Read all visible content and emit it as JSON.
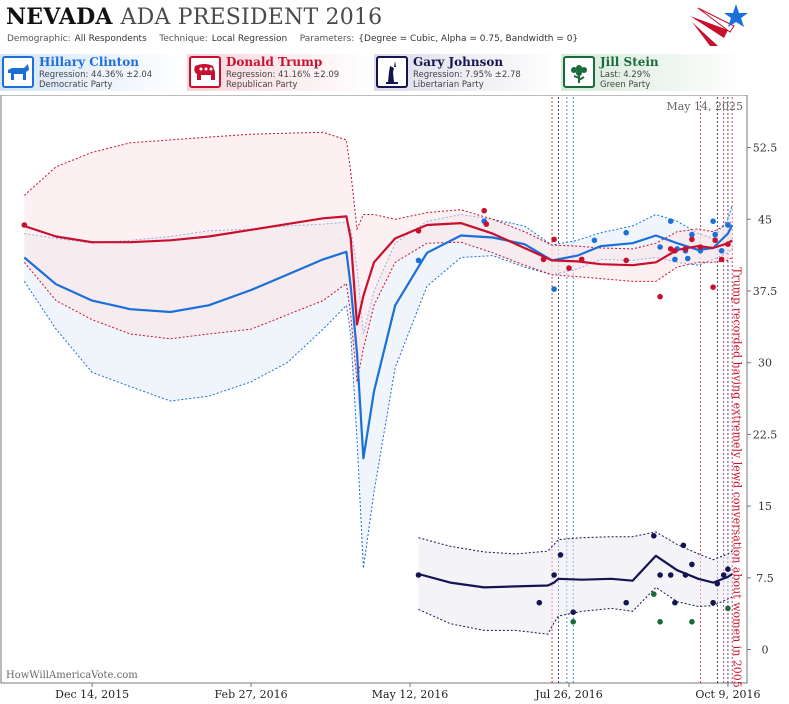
{
  "header": {
    "state": "NEVADA",
    "race": "ADA PRESIDENT 2016",
    "demographic_label": "Demographic:",
    "demographic": "All Respondents",
    "technique_label": "Technique:",
    "technique": "Local Regression",
    "parameters_label": "Parameters:",
    "parameters": "{Degree = Cubic, Alpha = 0.75, Bandwidth = 0}"
  },
  "candidates": [
    {
      "name": "Hillary Clinton",
      "line2": "Regression: 44.36% ±2.04",
      "line3": "Democratic Party",
      "color": "#1a6fd8",
      "icon": "donkey-icon"
    },
    {
      "name": "Donald Trump",
      "line2": "Regression: 41.16% ±2.09",
      "line3": "Republican Party",
      "color": "#c8102e",
      "icon": "elephant-icon"
    },
    {
      "name": "Gary Johnson",
      "line2": "Regression: 7.95% ±2.78",
      "line3": "Libertarian Party",
      "color": "#141450",
      "icon": "statue-of-liberty-icon"
    },
    {
      "name": "Jill Stein",
      "line2": "Last: 4.29%",
      "line3": "Green Party",
      "color": "#1a6b3c",
      "icon": "flower-icon"
    }
  ],
  "chart_data": {
    "type": "line",
    "x_unit": "date",
    "xlim": [
      "2015-11-01",
      "2016-10-18"
    ],
    "ylim": [
      -3.5,
      58
    ],
    "y_ticks": [
      0,
      7.5,
      15,
      22.5,
      30,
      37.5,
      45,
      52.5
    ],
    "y_tick_labels": [
      "0",
      "7.5",
      "15",
      "22.5",
      "30",
      "37.5",
      "45",
      "52.5"
    ],
    "x_ticks": [
      "2015-12-14",
      "2016-02-27",
      "2016-05-12",
      "2016-07-26",
      "2016-10-09"
    ],
    "x_tick_labels": [
      "Dec 14, 2015",
      "Feb 27, 2016",
      "May 12, 2016",
      "Jul 26, 2016",
      "Oct 9, 2016"
    ],
    "date_stamp": "May 14, 2025",
    "watermark": "HowWillAmericaVote.com",
    "annotation": "Trump recorded having extremely lewd conversation about women in 2005",
    "annotation_date": "2016-10-07",
    "event_lines": [
      "2016-07-18",
      "2016-07-21",
      "2016-07-25",
      "2016-07-28",
      "2016-09-26",
      "2016-10-04",
      "2016-10-07",
      "2016-10-09",
      "2016-10-11"
    ],
    "series": [
      {
        "name": "Hillary Clinton",
        "color": "#1a6fd8",
        "x": [
          "2015-11-12",
          "2015-11-27",
          "2015-12-14",
          "2016-01-01",
          "2016-01-20",
          "2016-02-07",
          "2016-02-27",
          "2016-03-15",
          "2016-04-01",
          "2016-04-12",
          "2016-04-14",
          "2016-04-17",
          "2016-04-20",
          "2016-04-25",
          "2016-05-05",
          "2016-05-20",
          "2016-06-05",
          "2016-06-20",
          "2016-07-05",
          "2016-07-18",
          "2016-07-30",
          "2016-08-10",
          "2016-08-25",
          "2016-09-05",
          "2016-09-15",
          "2016-09-25",
          "2016-10-02",
          "2016-10-09",
          "2016-10-11"
        ],
        "values": [
          41.0,
          38.2,
          36.5,
          35.6,
          35.3,
          36.0,
          37.6,
          39.2,
          40.8,
          41.6,
          38.0,
          31.0,
          20.0,
          27.0,
          36.0,
          41.5,
          43.3,
          43.1,
          42.4,
          40.7,
          41.2,
          42.2,
          42.5,
          43.3,
          42.5,
          41.8,
          42.0,
          43.5,
          44.4
        ],
        "upper": [
          43.5,
          43.0,
          42.5,
          42.8,
          43.2,
          43.8,
          44.0,
          44.3,
          44.5,
          44.7,
          44.0,
          40.0,
          33.0,
          37.5,
          42.5,
          44.8,
          45.5,
          45.0,
          44.3,
          42.3,
          42.8,
          43.6,
          44.3,
          45.5,
          44.8,
          43.5,
          43.0,
          45.0,
          46.5
        ],
        "lower": [
          38.5,
          33.5,
          29.0,
          27.5,
          26.0,
          26.5,
          28.0,
          30.0,
          33.5,
          36.0,
          33.0,
          22.0,
          8.5,
          16.5,
          29.5,
          38.0,
          41.0,
          41.2,
          40.0,
          39.2,
          39.8,
          40.8,
          40.7,
          41.0,
          40.5,
          40.2,
          40.8,
          41.5,
          42.0
        ],
        "points_x": [
          "2016-05-16",
          "2016-06-16",
          "2016-07-19",
          "2016-08-07",
          "2016-08-22",
          "2016-09-07",
          "2016-09-12",
          "2016-09-14",
          "2016-09-15",
          "2016-09-19",
          "2016-09-20",
          "2016-09-22",
          "2016-09-26",
          "2016-10-02",
          "2016-10-03",
          "2016-10-06",
          "2016-10-09"
        ],
        "points_y": [
          40.7,
          44.8,
          37.7,
          42.8,
          43.6,
          42.1,
          44.8,
          40.8,
          41.9,
          41.7,
          40.9,
          43.4,
          41.7,
          44.8,
          43.4,
          41.7,
          44.4
        ]
      },
      {
        "name": "Donald Trump",
        "color": "#c8102e",
        "x": [
          "2015-11-12",
          "2015-11-27",
          "2015-12-14",
          "2016-01-01",
          "2016-01-20",
          "2016-02-07",
          "2016-02-27",
          "2016-03-15",
          "2016-04-01",
          "2016-04-12",
          "2016-04-14",
          "2016-04-17",
          "2016-04-20",
          "2016-04-25",
          "2016-05-05",
          "2016-05-20",
          "2016-06-05",
          "2016-06-20",
          "2016-07-05",
          "2016-07-18",
          "2016-07-30",
          "2016-08-10",
          "2016-08-25",
          "2016-09-05",
          "2016-09-15",
          "2016-09-25",
          "2016-10-02",
          "2016-10-09",
          "2016-10-11"
        ],
        "values": [
          44.3,
          43.2,
          42.6,
          42.6,
          42.8,
          43.2,
          43.9,
          44.5,
          45.1,
          45.3,
          43.0,
          34.0,
          37.0,
          40.5,
          43.0,
          44.4,
          44.6,
          43.5,
          42.0,
          40.7,
          40.6,
          40.3,
          40.2,
          40.5,
          41.8,
          42.2,
          42.0,
          42.5,
          42.8
        ],
        "upper": [
          47.5,
          50.5,
          52.0,
          53.0,
          53.3,
          53.6,
          53.9,
          54.0,
          54.1,
          53.3,
          50.0,
          44.0,
          45.5,
          45.5,
          45.0,
          45.7,
          46.0,
          45.0,
          43.7,
          42.3,
          42.2,
          42.0,
          41.9,
          42.5,
          43.7,
          44.0,
          43.7,
          44.5,
          44.8
        ],
        "lower": [
          40.5,
          36.5,
          34.5,
          33.0,
          32.5,
          33.0,
          33.5,
          35.0,
          36.5,
          38.3,
          35.0,
          28.0,
          31.5,
          36.0,
          40.5,
          42.5,
          42.6,
          41.5,
          40.2,
          39.2,
          39.0,
          38.8,
          38.5,
          38.5,
          40.0,
          40.5,
          40.5,
          40.7,
          41.0
        ],
        "points_x": [
          "2015-11-12",
          "2016-05-16",
          "2016-06-16",
          "2016-06-17",
          "2016-07-14",
          "2016-07-19",
          "2016-07-26",
          "2016-08-01",
          "2016-08-22",
          "2016-09-07",
          "2016-09-12",
          "2016-09-14",
          "2016-09-19",
          "2016-09-22",
          "2016-09-26",
          "2016-10-02",
          "2016-10-03",
          "2016-10-06",
          "2016-10-09"
        ],
        "points_y": [
          44.4,
          43.8,
          45.9,
          44.5,
          40.8,
          42.9,
          39.9,
          40.8,
          40.7,
          36.9,
          41.9,
          41.7,
          41.9,
          42.9,
          42.1,
          37.9,
          42.8,
          40.8,
          42.4
        ]
      },
      {
        "name": "Gary Johnson",
        "color": "#141450",
        "x": [
          "2016-05-16",
          "2016-05-31",
          "2016-06-16",
          "2016-07-01",
          "2016-07-16",
          "2016-07-19",
          "2016-07-21",
          "2016-08-01",
          "2016-08-15",
          "2016-08-25",
          "2016-09-05",
          "2016-09-15",
          "2016-09-25",
          "2016-10-02",
          "2016-10-09",
          "2016-10-11"
        ],
        "values": [
          7.9,
          7.0,
          6.5,
          6.6,
          6.7,
          7.0,
          7.4,
          7.3,
          7.4,
          7.2,
          9.8,
          8.3,
          7.4,
          7.0,
          7.6,
          7.9
        ],
        "upper": [
          11.7,
          10.8,
          10.2,
          10.0,
          10.3,
          11.0,
          11.5,
          11.7,
          11.8,
          11.8,
          12.3,
          11.0,
          10.0,
          9.4,
          10.0,
          10.3
        ],
        "lower": [
          4.2,
          2.7,
          2.0,
          2.0,
          1.6,
          2.8,
          3.5,
          4.0,
          4.3,
          4.0,
          6.5,
          5.0,
          4.5,
          4.6,
          5.3,
          5.5
        ],
        "points_x": [
          "2016-05-16",
          "2016-07-12",
          "2016-07-19",
          "2016-07-22",
          "2016-07-28",
          "2016-08-22",
          "2016-09-04",
          "2016-09-07",
          "2016-09-12",
          "2016-09-14",
          "2016-09-18",
          "2016-09-19",
          "2016-09-22",
          "2016-10-02",
          "2016-10-04",
          "2016-10-07",
          "2016-10-09"
        ],
        "points_y": [
          7.8,
          4.9,
          7.8,
          9.9,
          3.9,
          4.9,
          11.9,
          7.8,
          7.8,
          4.9,
          10.9,
          7.8,
          8.9,
          4.9,
          6.9,
          7.8,
          8.4
        ]
      },
      {
        "name": "Jill Stein",
        "color": "#1a6b3c",
        "x": [],
        "values": [],
        "points_x": [
          "2016-07-28",
          "2016-09-04",
          "2016-09-07",
          "2016-09-22",
          "2016-10-09"
        ],
        "points_y": [
          2.9,
          5.8,
          2.9,
          2.9,
          4.3
        ]
      }
    ]
  }
}
